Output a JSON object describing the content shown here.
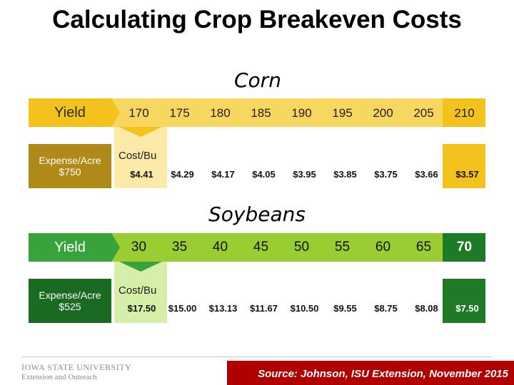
{
  "title": "Calculating Crop Breakeven Costs",
  "corn": {
    "heading": "Corn",
    "yield_label": "Yield",
    "expense_label": "Expense/Acre",
    "expense_value": "$750",
    "cost_label": "Cost/Bu",
    "yields": [
      "170",
      "175",
      "180",
      "185",
      "190",
      "195",
      "200",
      "205",
      "210"
    ],
    "costs": [
      "$4.41",
      "$4.29",
      "$4.17",
      "$4.05",
      "$3.95",
      "$3.85",
      "$3.75",
      "$3.66",
      "$3.57"
    ]
  },
  "soybeans": {
    "heading": "Soybeans",
    "yield_label": "Yield",
    "expense_label": "Expense/Acre",
    "expense_value": "$525",
    "cost_label": "Cost/Bu",
    "yields": [
      "30",
      "35",
      "40",
      "45",
      "50",
      "55",
      "60",
      "65",
      "70"
    ],
    "costs": [
      "$17.50",
      "$15.00",
      "$13.13",
      "$11.67",
      "$10.50",
      "$9.55",
      "$8.75",
      "$8.08",
      "$7.50"
    ]
  },
  "footer": {
    "logo_line1": "IOWA STATE UNIVERSITY",
    "logo_line2": "Extension and Outreach",
    "source": "Source:  Johnson, ISU Extension, November 2015"
  },
  "colors": {
    "corn_yellow": "#f3c21c",
    "corn_light": "#fbe9a8",
    "corn_gold": "#b08a18",
    "soy_green": "#3aa23a",
    "soy_light": "#d6efa8",
    "soy_dark": "#1a6a22",
    "footer_red": "#b00000"
  }
}
